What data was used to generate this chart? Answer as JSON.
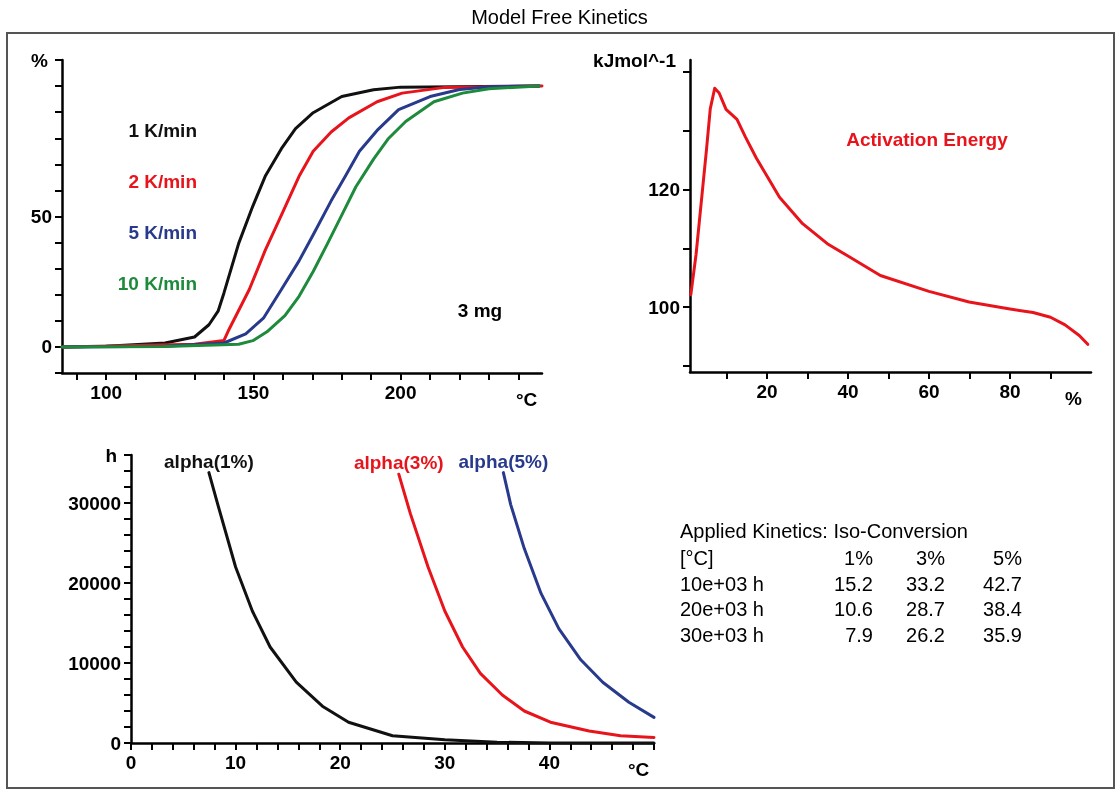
{
  "chart_data": [
    {
      "type": "line",
      "title": "Model Free Kinetics",
      "xlabel": "°C",
      "ylabel": "%",
      "marker": "none",
      "line_style": "solid",
      "annotations": [
        "3 mg"
      ],
      "xlim": [
        85,
        248
      ],
      "xticks": [
        {
          "value": 90,
          "label": null
        },
        100,
        {
          "value": 110,
          "label": null
        },
        {
          "value": 120,
          "label": null
        },
        {
          "value": 130,
          "label": null
        },
        {
          "value": 140,
          "label": null
        },
        150,
        {
          "value": 160,
          "label": null
        },
        {
          "value": 170,
          "label": null
        },
        {
          "value": 180,
          "label": null
        },
        {
          "value": 190,
          "label": null
        },
        200,
        {
          "value": 210,
          "label": null
        },
        {
          "value": 220,
          "label": null
        },
        {
          "value": 230,
          "label": null
        },
        {
          "value": 240,
          "label": null
        }
      ],
      "ylim": [
        -10,
        110
      ],
      "yticks": [
        {
          "value": -10,
          "label": null
        },
        0,
        {
          "value": 10,
          "label": null
        },
        {
          "value": 20,
          "label": null
        },
        {
          "value": 30,
          "label": null
        },
        {
          "value": 40,
          "label": null
        },
        50,
        {
          "value": 60,
          "label": null
        },
        {
          "value": 70,
          "label": null
        },
        {
          "value": 80,
          "label": null
        },
        {
          "value": 90,
          "label": null
        },
        {
          "value": 100,
          "label": null
        },
        {
          "value": 110,
          "label": null
        }
      ],
      "series": [
        {
          "name": "1 K/min",
          "color": "#111111",
          "x": [
            85,
            100,
            120,
            130,
            134.9,
            138,
            140,
            145,
            149.8,
            154,
            159.5,
            164.3,
            170.3,
            180,
            190.8,
            200,
            247
          ],
          "values": [
            0,
            0.3,
            1.5,
            3.8,
            8.5,
            13.7,
            20.7,
            39.7,
            54,
            65.4,
            76,
            83.7,
            89.8,
            96,
            98.6,
            99.6,
            100
          ]
        },
        {
          "name": "2 K/min",
          "color": "#e8141c",
          "x": [
            85,
            130,
            140,
            141.4,
            148.6,
            154,
            159.5,
            165.5,
            170.3,
            176.4,
            182.4,
            192,
            200.5,
            215,
            248
          ],
          "values": [
            0,
            1,
            2.5,
            6,
            22,
            37,
            50.5,
            65.4,
            75,
            82.4,
            87.8,
            94,
            97.3,
            99.5,
            100
          ]
        },
        {
          "name": "5 K/min",
          "color": "#283a8c",
          "x": [
            85,
            120,
            140,
            147.4,
            153.4,
            159.5,
            165.5,
            170.3,
            176.4,
            181.2,
            186,
            192,
            199.3,
            210,
            220,
            230,
            247
          ],
          "values": [
            0,
            0.3,
            1.5,
            5,
            11,
            22,
            33,
            43,
            56,
            65.4,
            75,
            83,
            91,
            96,
            98.7,
            99.7,
            100
          ]
        },
        {
          "name": "10 K/min",
          "color": "#1e8a3c",
          "x": [
            85,
            120,
            145,
            149.8,
            154.6,
            160.7,
            165.5,
            170.3,
            175.2,
            180,
            184.8,
            190.8,
            195.7,
            201.7,
            211.3,
            221,
            230,
            247
          ],
          "values": [
            0,
            0.2,
            1,
            2.4,
            5.8,
            12,
            19.4,
            28.9,
            39.7,
            50.5,
            61.4,
            72,
            79.7,
            86.4,
            94,
            97.3,
            99,
            100
          ]
        }
      ]
    },
    {
      "type": "line",
      "xlabel": "%",
      "ylabel": "kJmol^-1",
      "marker": "none",
      "line_style": "solid",
      "xlim": [
        1,
        100
      ],
      "xticks": [
        {
          "value": 10,
          "label": null
        },
        20,
        {
          "value": 30,
          "label": null
        },
        40,
        {
          "value": 50,
          "label": null
        },
        60,
        {
          "value": 70,
          "label": null
        },
        80,
        {
          "value": 90,
          "label": null
        }
      ],
      "ylim": [
        89,
        142
      ],
      "yticks": [
        {
          "value": 90,
          "label": null
        },
        100,
        {
          "value": 110,
          "label": null
        },
        120,
        {
          "value": 130,
          "label": null
        },
        {
          "value": 140,
          "label": null
        }
      ],
      "series": [
        {
          "name": "Activation Energy",
          "color": "#e8141c",
          "x": [
            1.2,
            2.5,
            3.8,
            5.1,
            6,
            7.1,
            8.2,
            9.9,
            12.6,
            14.7,
            17.4,
            20,
            23.1,
            28.8,
            34.9,
            40,
            48,
            60,
            69.9,
            80,
            85.7,
            90,
            93.6,
            97.1,
            99.2
          ],
          "values": [
            102.1,
            109,
            118,
            127,
            133.7,
            137.2,
            136.4,
            133.6,
            131.9,
            128.9,
            125.3,
            122.3,
            118.7,
            114.2,
            110.8,
            108.7,
            105.4,
            102.7,
            100.9,
            99.7,
            99.1,
            98.3,
            97,
            95.2,
            93.7
          ]
        }
      ]
    },
    {
      "type": "line",
      "xlabel": "°C",
      "ylabel": "h",
      "marker": "none",
      "line_style": "solid",
      "xlim": [
        0,
        50
      ],
      "xticks": [
        0,
        {
          "value": 2,
          "label": null
        },
        {
          "value": 4,
          "label": null
        },
        {
          "value": 6,
          "label": null
        },
        {
          "value": 8,
          "label": null
        },
        10,
        {
          "value": 12,
          "label": null
        },
        {
          "value": 14,
          "label": null
        },
        {
          "value": 16,
          "label": null
        },
        {
          "value": 18,
          "label": null
        },
        20,
        {
          "value": 22,
          "label": null
        },
        {
          "value": 24,
          "label": null
        },
        {
          "value": 26,
          "label": null
        },
        {
          "value": 28,
          "label": null
        },
        30,
        {
          "value": 32,
          "label": null
        },
        {
          "value": 34,
          "label": null
        },
        {
          "value": 36,
          "label": null
        },
        {
          "value": 38,
          "label": null
        },
        40,
        {
          "value": 42,
          "label": null
        },
        {
          "value": 44,
          "label": null
        },
        {
          "value": 46,
          "label": null
        },
        {
          "value": 48,
          "label": null
        },
        {
          "value": 50,
          "label": null
        }
      ],
      "ylim": [
        0,
        36000
      ],
      "yticks": [
        0,
        {
          "value": 2000,
          "label": null
        },
        {
          "value": 4000,
          "label": null
        },
        {
          "value": 6000,
          "label": null
        },
        {
          "value": 8000,
          "label": null
        },
        10000,
        {
          "value": 12000,
          "label": null
        },
        {
          "value": 14000,
          "label": null
        },
        {
          "value": 16000,
          "label": null
        },
        {
          "value": 18000,
          "label": null
        },
        20000,
        {
          "value": 22000,
          "label": null
        },
        {
          "value": 24000,
          "label": null
        },
        {
          "value": 26000,
          "label": null
        },
        {
          "value": 28000,
          "label": null
        },
        30000,
        {
          "value": 32000,
          "label": null
        },
        {
          "value": 34000,
          "label": null
        },
        {
          "value": 36000,
          "label": null
        }
      ],
      "series": [
        {
          "name": "alpha(1%)",
          "color": "#111111",
          "x": [
            7.45,
            8.3,
            10,
            11.6,
            13.3,
            15.8,
            18.3,
            20.8,
            25,
            30,
            35,
            40,
            50
          ],
          "values": [
            33800,
            29800,
            22000,
            16500,
            12000,
            7600,
            4600,
            2600,
            900,
            400,
            100,
            0,
            0
          ]
        },
        {
          "name": "alpha(3%)",
          "color": "#e8141c",
          "x": [
            25.6,
            26.7,
            28.4,
            30,
            31.7,
            33.4,
            35.5,
            37.6,
            40.1,
            43.8,
            46.8,
            50
          ],
          "values": [
            33600,
            28700,
            22000,
            16500,
            12000,
            8700,
            6000,
            4000,
            2600,
            1500,
            900,
            700
          ]
        },
        {
          "name": "alpha(5%)",
          "color": "#283a8c",
          "x": [
            35.6,
            36.3,
            37.6,
            39.2,
            40.9,
            43,
            45.1,
            47.6,
            50
          ],
          "values": [
            33800,
            29800,
            24300,
            18700,
            14300,
            10400,
            7600,
            5100,
            3200
          ]
        }
      ]
    },
    {
      "type": "other",
      "title": "Applied Kinetics: Iso-Conversion",
      "annotations": [
        "[°C]",
        "1%",
        "3%",
        "5%",
        "10e+03 h",
        "15.2",
        "33.2",
        "42.7",
        "20e+03 h",
        "10.6",
        "28.7",
        "38.4",
        "30e+03 h",
        "7.9",
        "26.2",
        "35.9"
      ]
    }
  ]
}
